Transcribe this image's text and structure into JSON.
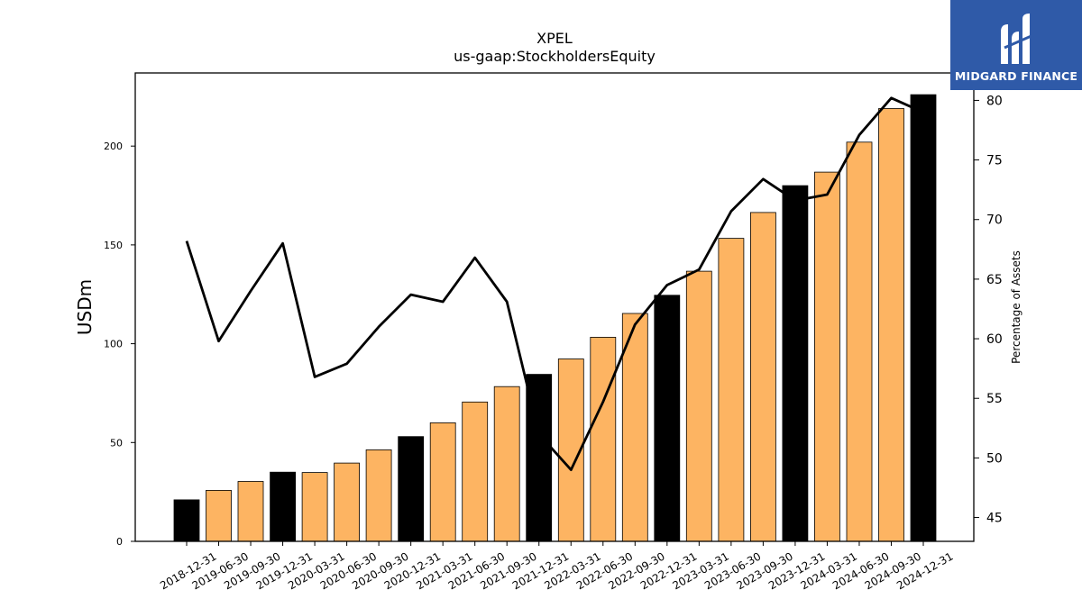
{
  "brand": {
    "name": "MIDGARD FINANCE"
  },
  "chart_data": {
    "type": "bar",
    "title": "XPEL",
    "subtitle": "us-gaap:StockholdersEquity",
    "ylabel": "USDm",
    "y2label": "Percentage of Assets",
    "ylim": [
      0,
      237
    ],
    "y2lim": [
      43,
      82.3
    ],
    "yticks": [
      0,
      50,
      100,
      150,
      200
    ],
    "y2ticks": [
      45,
      50,
      55,
      60,
      65,
      70,
      75,
      80
    ],
    "categories": [
      "2018-12-31",
      "2019-06-30",
      "2019-09-30",
      "2019-12-31",
      "2020-03-31",
      "2020-06-30",
      "2020-09-30",
      "2020-12-31",
      "2021-03-31",
      "2021-06-30",
      "2021-09-30",
      "2021-12-31",
      "2022-03-31",
      "2022-06-30",
      "2022-09-30",
      "2022-12-31",
      "2023-03-31",
      "2023-06-30",
      "2023-09-30",
      "2023-12-31",
      "2024-03-31",
      "2024-06-30",
      "2024-09-30",
      "2024-12-31"
    ],
    "series": [
      {
        "type": "bar",
        "values": [
          21,
          25.8,
          30.3,
          35,
          34.8,
          39.6,
          46.3,
          53,
          60,
          70.5,
          78.3,
          84.5,
          92.3,
          103.3,
          115.3,
          124.5,
          136.7,
          153.3,
          166.4,
          180,
          186.8,
          202,
          219,
          226
        ],
        "colors": [
          "#000000",
          "#fdb462",
          "#fdb462",
          "#000000",
          "#fdb462",
          "#fdb462",
          "#fdb462",
          "#000000",
          "#fdb462",
          "#fdb462",
          "#fdb462",
          "#000000",
          "#fdb462",
          "#fdb462",
          "#fdb462",
          "#000000",
          "#fdb462",
          "#fdb462",
          "#fdb462",
          "#000000",
          "#fdb462",
          "#fdb462",
          "#fdb462",
          "#000000"
        ]
      },
      {
        "type": "line",
        "axis": "right",
        "color": "#000000",
        "values": [
          68.2,
          59.8,
          64,
          68,
          56.8,
          57.9,
          61,
          63.7,
          63.1,
          66.8,
          63.1,
          52,
          49,
          54.7,
          61.2,
          64.5,
          65.8,
          70.7,
          73.4,
          71.6,
          72.1,
          77.1,
          80.2,
          79
        ]
      }
    ],
    "grid": false,
    "legend": "none"
  }
}
